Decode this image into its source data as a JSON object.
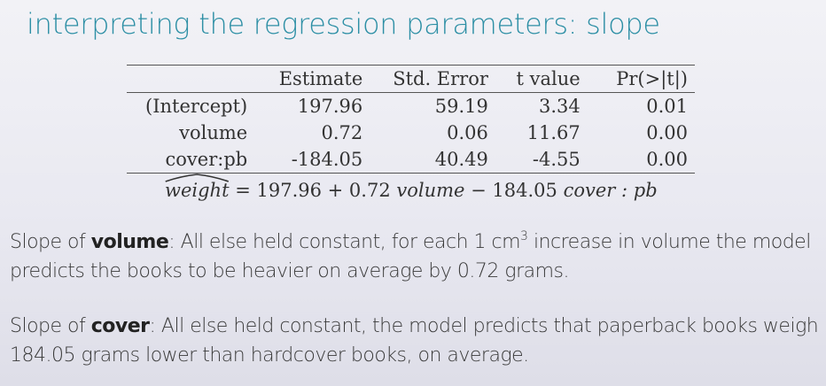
{
  "slide": {
    "title": "interpreting the regression parameters: slope"
  },
  "table": {
    "headers": [
      "",
      "Estimate",
      "Std. Error",
      "t value",
      "Pr(>|t|)"
    ],
    "rows": [
      {
        "term": "(Intercept)",
        "estimate": "197.96",
        "std_error": "59.19",
        "t_value": "3.34",
        "p_value": "0.01"
      },
      {
        "term": "volume",
        "estimate": "0.72",
        "std_error": "0.06",
        "t_value": "11.67",
        "p_value": "0.00"
      },
      {
        "term": "cover:pb",
        "estimate": "-184.05",
        "std_error": "40.49",
        "t_value": "-4.55",
        "p_value": "0.00"
      }
    ]
  },
  "equation": {
    "lhs": "weight",
    "eq": " = ",
    "intercept": "197.96",
    "plus": " + ",
    "b1": "0.72",
    "x1": "volume",
    "minus": " − ",
    "b2": "184.05",
    "x2": "cover : pb"
  },
  "paragraphs": {
    "p1": {
      "lead": "Slope of ",
      "bold": "volume",
      "text_a": ": All else held constant, for each 1 cm",
      "sup": "3",
      "text_b": " increase in volume the model predicts the books to be heavier on average by 0.72 grams."
    },
    "p2": {
      "lead": "Slope of ",
      "bold": "cover",
      "text": ": All else held constant, the model predicts that paperback books weigh 184.05 grams lower than hardcover books, on average."
    }
  }
}
